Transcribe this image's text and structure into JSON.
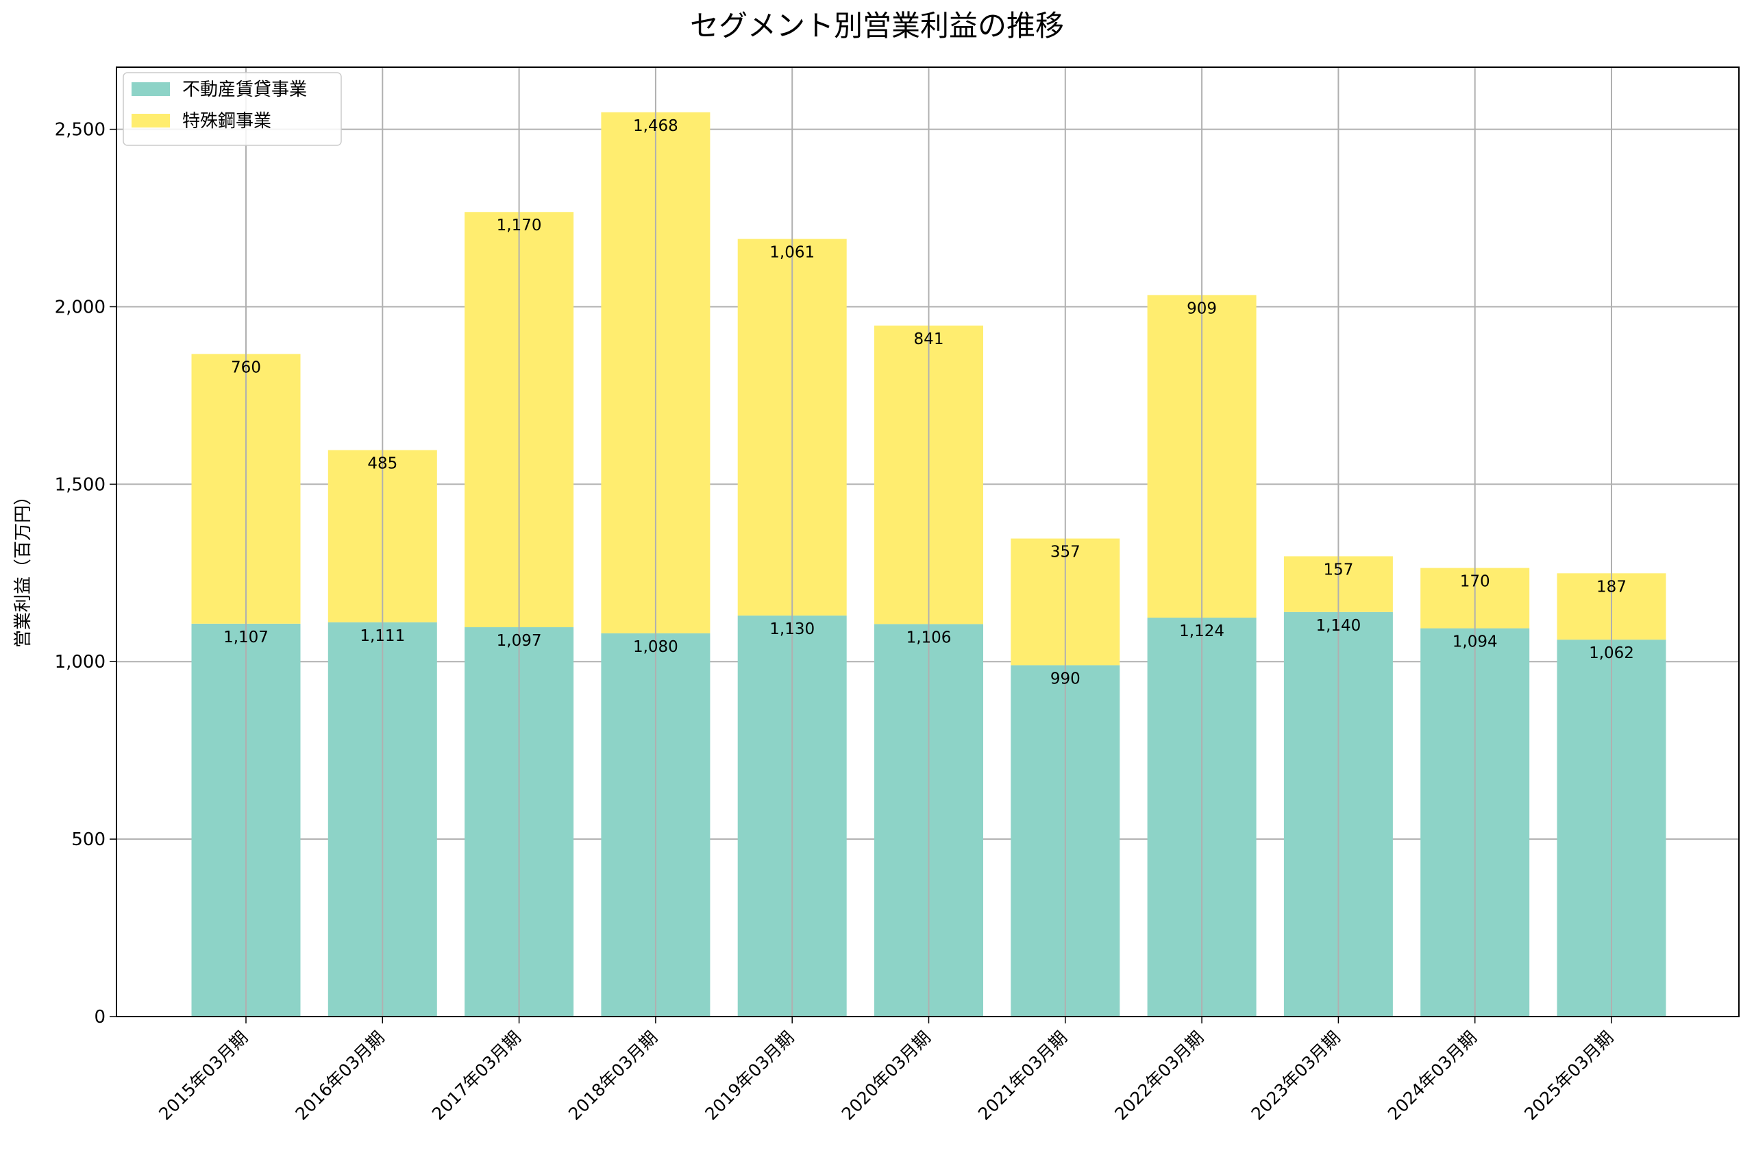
{
  "chart_data": {
    "type": "bar",
    "stacked": true,
    "title": "セグメント別営業利益の推移",
    "xlabel": "",
    "ylabel": "営業利益（百万円）",
    "ylim": [
      0,
      2675
    ],
    "yticks": [
      0,
      500,
      1000,
      1500,
      2000,
      2500
    ],
    "ytick_labels": [
      "0",
      "500",
      "1,000",
      "1,500",
      "2,000",
      "2,500"
    ],
    "grid": true,
    "legend_position": "top-left",
    "categories": [
      "2015年03月期",
      "2016年03月期",
      "2017年03月期",
      "2018年03月期",
      "2019年03月期",
      "2020年03月期",
      "2021年03月期",
      "2022年03月期",
      "2023年03月期",
      "2024年03月期",
      "2025年03月期"
    ],
    "series": [
      {
        "name": "不動産賃貸事業",
        "color": "#8dd3c7",
        "values": [
          1107,
          1111,
          1097,
          1080,
          1130,
          1106,
          990,
          1124,
          1140,
          1094,
          1062
        ],
        "labels": [
          "1,107",
          "1,111",
          "1,097",
          "1,080",
          "1,130",
          "1,106",
          "990",
          "1,124",
          "1,140",
          "1,094",
          "1,062"
        ]
      },
      {
        "name": "特殊鋼事業",
        "color": "#ffed6f",
        "values": [
          760,
          485,
          1170,
          1468,
          1061,
          841,
          357,
          909,
          157,
          170,
          187
        ],
        "labels": [
          "760",
          "485",
          "1,170",
          "1,468",
          "1,061",
          "841",
          "357",
          "909",
          "157",
          "170",
          "187"
        ]
      }
    ]
  }
}
